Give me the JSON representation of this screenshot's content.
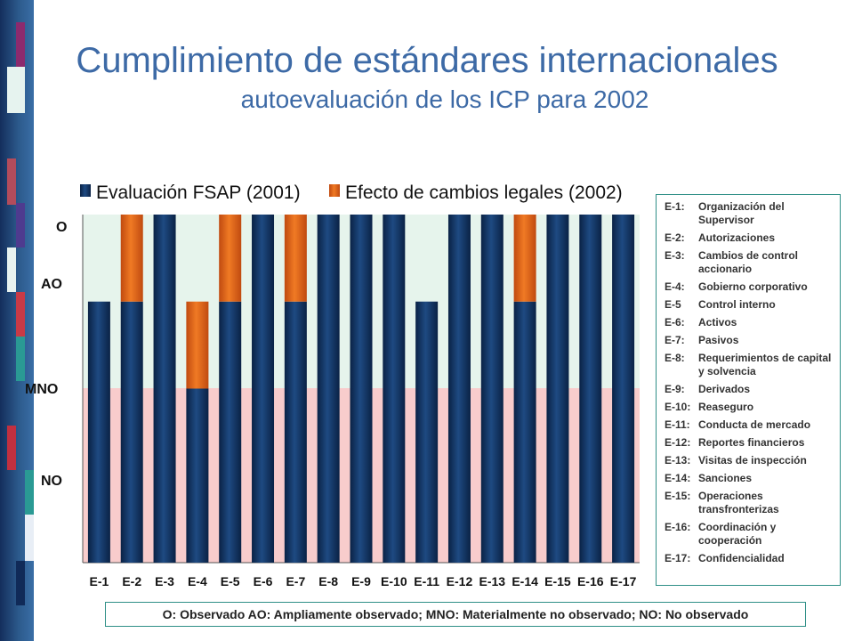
{
  "slide": {
    "title": "Cumplimiento de estándares internacionales",
    "subtitle": "autoevaluación de los ICP para 2002",
    "note": "O: Observado  AO: Ampliamente observado;  MNO: Materialmente no observado;  NO: No observado"
  },
  "colors": {
    "title": "#3d6aa6",
    "fsap": "#0c2b57",
    "change": "#e0621a",
    "band_upper": "#e6f4ec",
    "band_lower": "#f8cccc",
    "border": "#2f8f87"
  },
  "standards_legend": [
    {
      "code": "E-1:",
      "name": "Organización del Supervisor"
    },
    {
      "code": "E-2:",
      "name": "Autorizaciones"
    },
    {
      "code": "E-3:",
      "name": "Cambios de control accionario"
    },
    {
      "code": "E-4:",
      "name": "Gobierno corporativo"
    },
    {
      "code": "E-5",
      "name": "Control interno"
    },
    {
      "code": "E-6:",
      "name": "Activos"
    },
    {
      "code": "E-7:",
      "name": "Pasivos"
    },
    {
      "code": "E-8:",
      "name": "Requerimientos de capital y solvencia"
    },
    {
      "code": "E-9:",
      "name": "Derivados"
    },
    {
      "code": "E-10:",
      "name": "Reaseguro"
    },
    {
      "code": "E-11:",
      "name": "Conducta de mercado"
    },
    {
      "code": "E-12:",
      "name": "Reportes financieros"
    },
    {
      "code": "E-13:",
      "name": "Visitas de inspección"
    },
    {
      "code": "E-14:",
      "name": "Sanciones"
    },
    {
      "code": "E-15:",
      "name": "Operaciones transfronterizas"
    },
    {
      "code": "E-16:",
      "name": "Coordinación y cooperación"
    },
    {
      "code": "E-17:",
      "name": "Confidencialidad"
    }
  ],
  "chart_data": {
    "type": "bar",
    "stacked": true,
    "categories": [
      "E-1",
      "E-2",
      "E-3",
      "E-4",
      "E-5",
      "E-6",
      "E-7",
      "E-8",
      "E-9",
      "E-10",
      "E-11",
      "E-12",
      "E-13",
      "E-14",
      "E-15",
      "E-16",
      "E-17"
    ],
    "y_levels": [
      {
        "label": "NO",
        "value": 1
      },
      {
        "label": "MNO",
        "value": 2
      },
      {
        "label": "AO",
        "value": 3
      },
      {
        "label": "O",
        "value": 4
      }
    ],
    "ylim": [
      0,
      4
    ],
    "series": [
      {
        "name": "Evaluación FSAP (2001)",
        "values": [
          3,
          3,
          4,
          2,
          3,
          4,
          3,
          4,
          4,
          4,
          3,
          4,
          4,
          3,
          4,
          4,
          4
        ]
      },
      {
        "name": "Efecto de cambios legales (2002)",
        "values": [
          0,
          1,
          0,
          1,
          1,
          0,
          1,
          0,
          0,
          0,
          0,
          0,
          0,
          1,
          0,
          0,
          0
        ]
      }
    ],
    "legend_position": "top"
  }
}
